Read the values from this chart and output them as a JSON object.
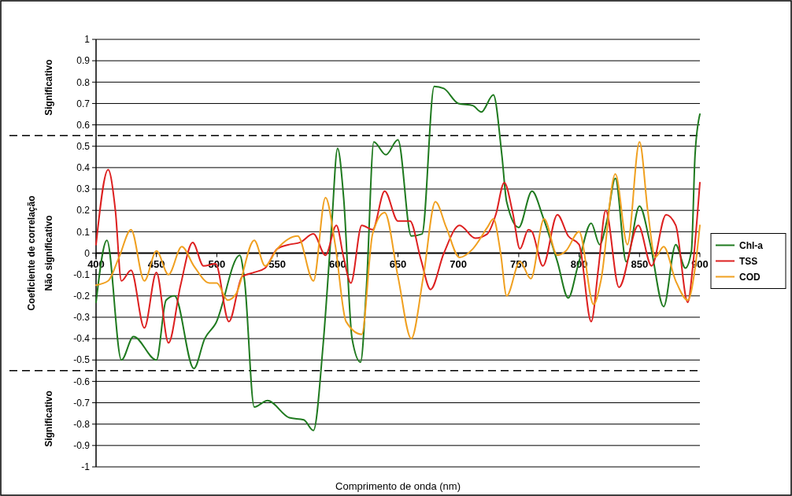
{
  "chart_data": {
    "type": "line",
    "xlabel": "Comprimento de onda (nm)",
    "ylabel": "Coeficiente de correlação",
    "xlim": [
      400,
      900
    ],
    "xticks": [
      400,
      450,
      500,
      550,
      600,
      650,
      700,
      750,
      800,
      850,
      900
    ],
    "ylim": [
      -1,
      1
    ],
    "yticks": [
      1,
      0.9,
      0.8,
      0.7,
      0.6,
      0.5,
      0.4,
      0.3,
      0.2,
      0.1,
      0,
      -0.1,
      -0.2,
      -0.3,
      -0.4,
      -0.5,
      -0.6,
      -0.7,
      -0.8,
      -0.9,
      -1
    ],
    "grid": "y",
    "legend": "right",
    "marker": "none",
    "line_style": "solid",
    "ref_lines": [
      {
        "axis": "y",
        "value": 0.55,
        "color": "#000000",
        "line_style": "dashed"
      },
      {
        "axis": "y",
        "value": -0.55,
        "color": "#000000",
        "line_style": "dashed"
      }
    ],
    "annotations": [
      "Significativo",
      "Não significativo",
      "Significativo"
    ],
    "series": [
      {
        "name": "Chl-a",
        "color": "#1f7a1f",
        "x": [
          400,
          409,
          421,
          431,
          450,
          458,
          465,
          481,
          490,
          499,
          519,
          523,
          531,
          542,
          560,
          572,
          580,
          588,
          595,
          600,
          605,
          612,
          619,
          624,
          630,
          640,
          650,
          661,
          670,
          680,
          688,
          700,
          712,
          719,
          729,
          736,
          740,
          750,
          761,
          770,
          782,
          791,
          799,
          810,
          817,
          823,
          830,
          839,
          850,
          859,
          870,
          880,
          888,
          893,
          896,
          900
        ],
        "values": [
          -0.23,
          0.06,
          -0.5,
          -0.39,
          -0.5,
          -0.22,
          -0.2,
          -0.54,
          -0.4,
          -0.33,
          -0.01,
          -0.13,
          -0.72,
          -0.69,
          -0.77,
          -0.78,
          -0.83,
          -0.43,
          0.12,
          0.49,
          0.26,
          -0.4,
          -0.51,
          -0.15,
          0.52,
          0.46,
          0.53,
          0.08,
          0.09,
          0.78,
          0.77,
          0.7,
          0.69,
          0.66,
          0.74,
          0.46,
          0.24,
          0.12,
          0.29,
          0.17,
          -0.04,
          -0.21,
          -0.06,
          0.14,
          0.04,
          0.15,
          0.35,
          -0.04,
          0.22,
          0.04,
          -0.25,
          0.04,
          -0.07,
          0.01,
          0.46,
          0.65
        ]
      },
      {
        "name": "TSS",
        "color": "#dd2020",
        "x": [
          400,
          410,
          416,
          421,
          429,
          440,
          450,
          460,
          470,
          480,
          489,
          499,
          510,
          521,
          531,
          540,
          550,
          560,
          569,
          580,
          590,
          599,
          605,
          611,
          620,
          629,
          639,
          650,
          660,
          669,
          677,
          688,
          701,
          714,
          724,
          731,
          738,
          745,
          751,
          758,
          761,
          770,
          782,
          791,
          800,
          810,
          816,
          822,
          833,
          849,
          860,
          872,
          880,
          890,
          894,
          900
        ],
        "values": [
          0.04,
          0.39,
          0.2,
          -0.13,
          -0.08,
          -0.35,
          -0.09,
          -0.42,
          -0.15,
          0.05,
          -0.06,
          -0.05,
          -0.32,
          -0.11,
          -0.09,
          -0.07,
          0.02,
          0.04,
          0.05,
          0.09,
          -0.01,
          0.13,
          -0.02,
          -0.14,
          0.13,
          0.11,
          0.29,
          0.15,
          0.15,
          -0.03,
          -0.17,
          0,
          0.13,
          0.07,
          0.09,
          0.18,
          0.33,
          0.19,
          0.02,
          0.11,
          0.1,
          -0.06,
          0.18,
          0.08,
          0.04,
          -0.32,
          -0.07,
          0.2,
          -0.16,
          0.13,
          -0.06,
          0.18,
          0.13,
          -0.23,
          -0.07,
          0.33
        ]
      },
      {
        "name": "COD",
        "color": "#f0a020",
        "x": [
          400,
          410,
          419,
          429,
          440,
          450,
          460,
          471,
          481,
          494,
          500,
          509,
          516,
          531,
          540,
          550,
          567,
          580,
          590,
          598,
          607,
          620,
          629,
          639,
          650,
          661,
          671,
          681,
          690,
          701,
          712,
          724,
          729,
          735,
          740,
          751,
          760,
          771,
          782,
          789,
          800,
          812,
          818,
          830,
          840,
          850,
          857,
          863,
          870,
          880,
          890,
          896,
          900
        ],
        "values": [
          -0.15,
          -0.13,
          -0.02,
          0.11,
          -0.13,
          0.01,
          -0.1,
          0.03,
          -0.06,
          -0.14,
          -0.14,
          -0.22,
          -0.19,
          0.06,
          -0.06,
          0.02,
          0.08,
          -0.13,
          0.26,
          0.04,
          -0.32,
          -0.38,
          0.09,
          0.19,
          -0.11,
          -0.4,
          -0.11,
          0.24,
          0.12,
          -0.02,
          0.02,
          0.12,
          0.16,
          0,
          -0.2,
          -0.04,
          -0.12,
          0.16,
          -0.01,
          0.01,
          0.1,
          -0.24,
          -0.13,
          0.37,
          0.04,
          0.52,
          0.19,
          -0.02,
          0.03,
          -0.13,
          -0.22,
          -0.07,
          0.13
        ]
      }
    ]
  }
}
